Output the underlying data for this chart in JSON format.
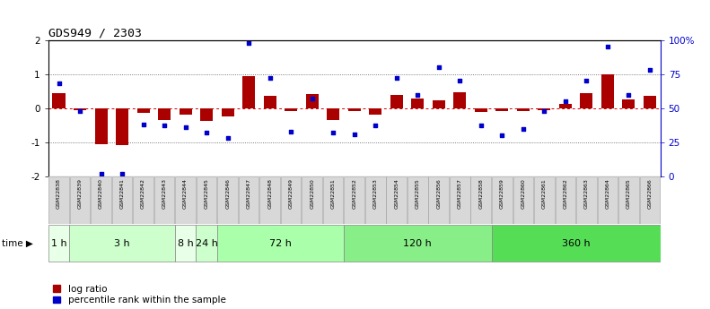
{
  "title": "GDS949 / 2303",
  "samples": [
    "GSM22838",
    "GSM22839",
    "GSM22840",
    "GSM22841",
    "GSM22842",
    "GSM22843",
    "GSM22844",
    "GSM22845",
    "GSM22846",
    "GSM22847",
    "GSM22848",
    "GSM22849",
    "GSM22850",
    "GSM22851",
    "GSM22852",
    "GSM22853",
    "GSM22854",
    "GSM22855",
    "GSM22856",
    "GSM22857",
    "GSM22858",
    "GSM22859",
    "GSM22860",
    "GSM22861",
    "GSM22862",
    "GSM22863",
    "GSM22864",
    "GSM22865",
    "GSM22866"
  ],
  "log_ratio": [
    0.45,
    -0.05,
    -1.05,
    -1.1,
    -0.15,
    -0.35,
    -0.18,
    -0.38,
    -0.25,
    0.95,
    0.35,
    -0.08,
    0.42,
    -0.35,
    -0.08,
    -0.18,
    0.38,
    0.28,
    0.22,
    0.48,
    -0.12,
    -0.08,
    -0.08,
    -0.05,
    0.12,
    0.44,
    1.0,
    0.25,
    0.35
  ],
  "percentile": [
    68,
    48,
    2,
    2,
    38,
    37,
    36,
    32,
    28,
    98,
    72,
    33,
    57,
    32,
    31,
    37,
    72,
    60,
    80,
    70,
    37,
    30,
    35,
    48,
    55,
    70,
    95,
    60,
    78
  ],
  "time_groups": [
    {
      "label": "1 h",
      "start": 0,
      "end": 1,
      "color": "#e8ffe8"
    },
    {
      "label": "3 h",
      "start": 1,
      "end": 6,
      "color": "#ccffcc"
    },
    {
      "label": "8 h",
      "start": 6,
      "end": 7,
      "color": "#e8ffe8"
    },
    {
      "label": "24 h",
      "start": 7,
      "end": 8,
      "color": "#ccffcc"
    },
    {
      "label": "72 h",
      "start": 8,
      "end": 14,
      "color": "#aaffaa"
    },
    {
      "label": "120 h",
      "start": 14,
      "end": 21,
      "color": "#88ee88"
    },
    {
      "label": "360 h",
      "start": 21,
      "end": 29,
      "color": "#55dd55"
    }
  ],
  "bar_color": "#aa0000",
  "dot_color": "#0000cc",
  "ylim": [
    -2,
    2
  ],
  "y2lim": [
    0,
    100
  ],
  "yticks": [
    -2,
    -1,
    0,
    1,
    2
  ],
  "y2ticks": [
    0,
    25,
    50,
    75,
    100
  ],
  "hline_color": "#cc0000",
  "dotted_color": "#555555",
  "bg_color": "#ffffff",
  "sample_box_color": "#cccccc",
  "legend_labels": [
    "log ratio",
    "percentile rank within the sample"
  ]
}
